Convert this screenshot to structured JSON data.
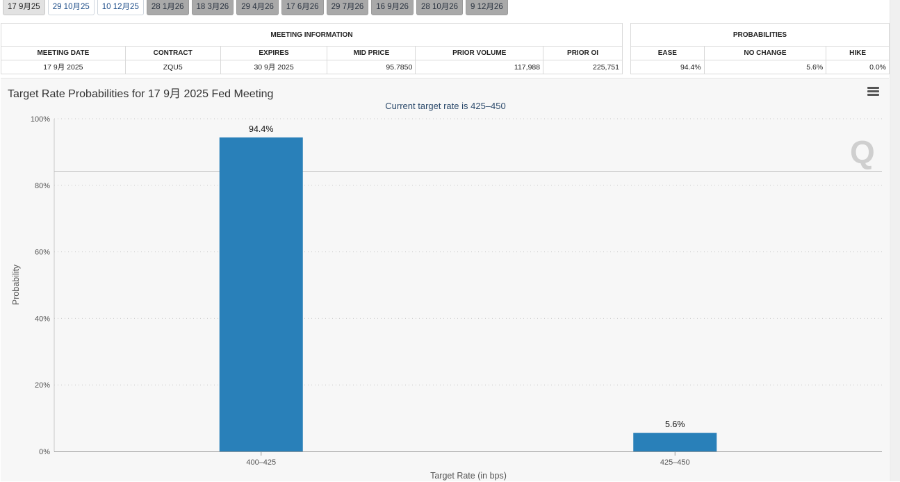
{
  "tabs": [
    {
      "label": "17 9月25",
      "state": "active"
    },
    {
      "label": "29 10月25",
      "state": "near"
    },
    {
      "label": "10 12月25",
      "state": "near"
    },
    {
      "label": "28 1月26",
      "state": "far"
    },
    {
      "label": "18 3月26",
      "state": "far"
    },
    {
      "label": "29 4月26",
      "state": "far"
    },
    {
      "label": "17 6月26",
      "state": "far"
    },
    {
      "label": "29 7月26",
      "state": "far"
    },
    {
      "label": "16 9月26",
      "state": "far"
    },
    {
      "label": "28 10月26",
      "state": "far"
    },
    {
      "label": "9 12月26",
      "state": "far"
    }
  ],
  "meeting_info": {
    "title": "MEETING INFORMATION",
    "headers": [
      "MEETING DATE",
      "CONTRACT",
      "EXPIRES",
      "MID PRICE",
      "PRIOR VOLUME",
      "PRIOR OI"
    ],
    "row": [
      "17 9月 2025",
      "ZQU5",
      "30 9月 2025",
      "95.7850",
      "117,988",
      "225,751"
    ]
  },
  "probabilities": {
    "title": "PROBABILITIES",
    "headers": [
      "EASE",
      "NO CHANGE",
      "HIKE"
    ],
    "row": [
      "94.4%",
      "5.6%",
      "0.0%"
    ]
  },
  "chart_data": {
    "type": "bar",
    "title": "Target Rate Probabilities for 17 9月 2025 Fed Meeting",
    "subtitle": "Current target rate is 425–450",
    "xlabel": "Target Rate (in bps)",
    "ylabel": "Probability",
    "categories": [
      "400–425",
      "425–450"
    ],
    "values": [
      94.4,
      5.6
    ],
    "value_labels": [
      "94.4%",
      "5.6%"
    ],
    "ylim": [
      0,
      100
    ],
    "yticks": [
      0,
      20,
      40,
      60,
      80,
      100
    ],
    "ytick_labels": [
      "0%",
      "20%",
      "40%",
      "60%",
      "80%",
      "100%"
    ],
    "grid": true,
    "bar_color": "#2980b9"
  }
}
